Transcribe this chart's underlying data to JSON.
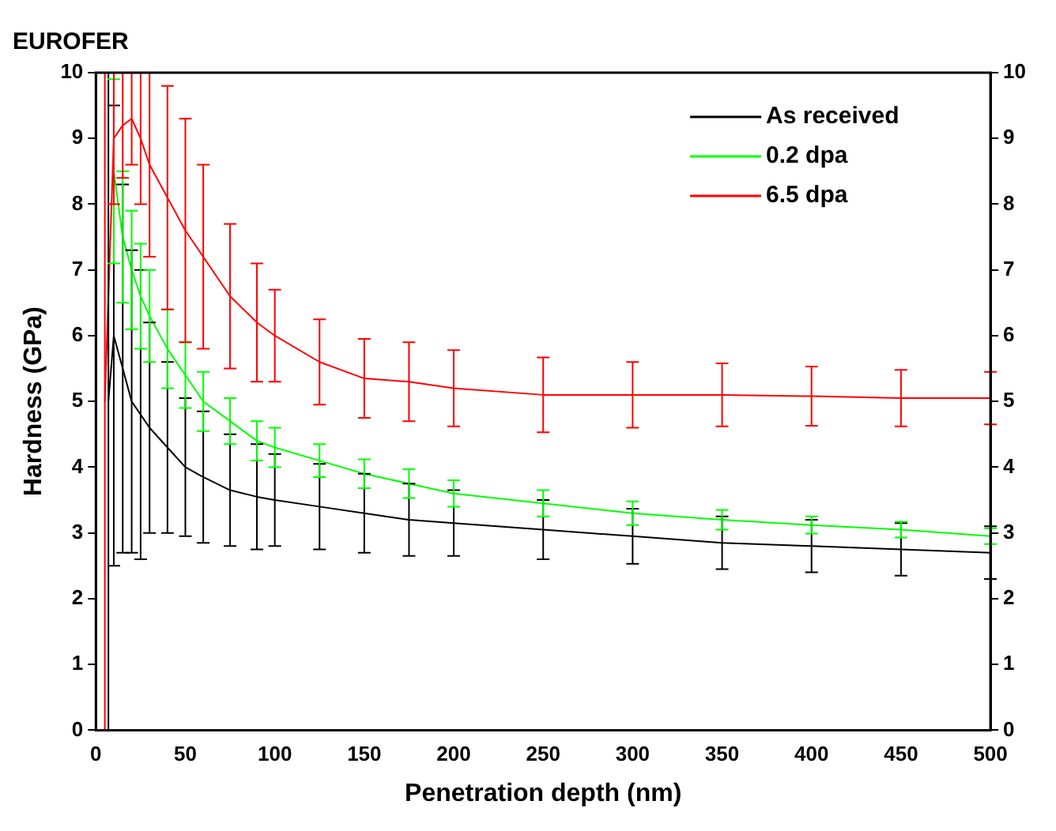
{
  "chart_data": {
    "type": "line",
    "title": "EUROFER",
    "xlabel": "Penetration depth (nm)",
    "ylabel": "Hardness (GPa)",
    "xlim": [
      0,
      500
    ],
    "xticks": [
      0,
      50,
      100,
      150,
      200,
      250,
      300,
      350,
      400,
      450,
      500
    ],
    "ylim": [
      0,
      10
    ],
    "yticks": [
      0,
      1,
      2,
      3,
      4,
      5,
      6,
      7,
      8,
      9,
      10
    ],
    "y2lim": [
      0,
      10
    ],
    "y2ticks": [
      0,
      1,
      2,
      3,
      4,
      5,
      6,
      7,
      8,
      9,
      10
    ],
    "grid": false,
    "legend": "top right",
    "marker": "none",
    "line_style": "solid",
    "series": [
      {
        "name": "As received",
        "color": "#000000",
        "x": [
          7,
          10,
          15,
          20,
          25,
          30,
          40,
          50,
          60,
          75,
          90,
          100,
          125,
          150,
          175,
          200,
          250,
          300,
          350,
          400,
          450,
          500
        ],
        "values": [
          5,
          6,
          5.5,
          5,
          4.8,
          4.6,
          4.3,
          4.0,
          3.85,
          3.65,
          3.55,
          3.5,
          3.4,
          3.3,
          3.2,
          3.15,
          3.05,
          2.95,
          2.85,
          2.8,
          2.75,
          2.7
        ],
        "errors": [
          5,
          3.5,
          2.8,
          2.3,
          2.2,
          1.6,
          1.3,
          1.05,
          1,
          0.85,
          0.8,
          0.7,
          0.65,
          0.6,
          0.55,
          0.5,
          0.45,
          0.42,
          0.4,
          0.4,
          0.4,
          0.4
        ]
      },
      {
        "name": "0.2 dpa",
        "color": "#00ff00",
        "x": [
          10,
          15,
          20,
          25,
          30,
          40,
          50,
          60,
          75,
          90,
          100,
          125,
          150,
          175,
          200,
          250,
          300,
          350,
          400,
          450,
          500
        ],
        "values": [
          8.5,
          7.5,
          7,
          6.6,
          6.3,
          5.8,
          5.4,
          5.0,
          4.7,
          4.4,
          4.3,
          4.1,
          3.9,
          3.75,
          3.6,
          3.45,
          3.3,
          3.2,
          3.12,
          3.05,
          2.95
        ],
        "errors": [
          1.4,
          1,
          0.9,
          0.8,
          0.7,
          0.6,
          0.5,
          0.45,
          0.35,
          0.3,
          0.3,
          0.25,
          0.22,
          0.22,
          0.2,
          0.2,
          0.18,
          0.15,
          0.13,
          0.12,
          0.12
        ]
      },
      {
        "name": "6.5 dpa",
        "color": "#ff0000",
        "x": [
          5,
          10,
          15,
          20,
          25,
          30,
          40,
          50,
          60,
          75,
          90,
          100,
          125,
          150,
          175,
          200,
          250,
          300,
          350,
          400,
          450,
          500
        ],
        "values": [
          5,
          9,
          9.2,
          9.3,
          9,
          8.6,
          8.1,
          7.6,
          7.2,
          6.6,
          6.2,
          6.0,
          5.6,
          5.35,
          5.3,
          5.2,
          5.1,
          5.1,
          5.1,
          5.08,
          5.05,
          5.05
        ],
        "errors": [
          5,
          1,
          0.8,
          0.7,
          1,
          1.4,
          1.7,
          1.7,
          1.4,
          1.1,
          0.9,
          0.7,
          0.65,
          0.6,
          0.6,
          0.58,
          0.57,
          0.5,
          0.48,
          0.45,
          0.43,
          0.4
        ]
      }
    ]
  }
}
